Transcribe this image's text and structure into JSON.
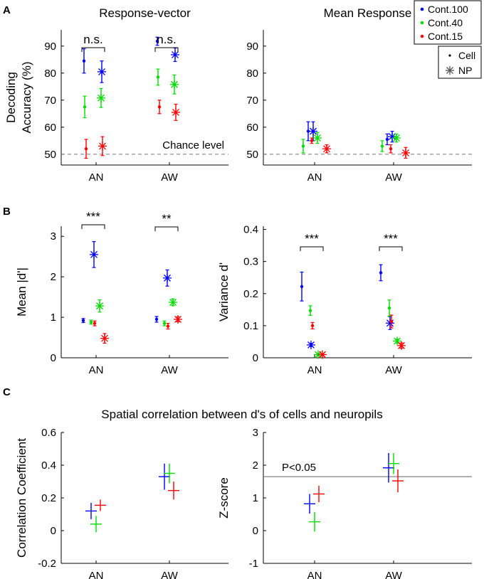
{
  "figure": {
    "panel_letters": [
      "A",
      "B",
      "C"
    ],
    "section_c_title": "Spatial correlation between d's of cells and neuropils"
  },
  "legend": {
    "colors": [
      {
        "label": "Cont.100",
        "color": "#0000ff"
      },
      {
        "label": "Cont.40",
        "color": "#00dd00"
      },
      {
        "label": "Cont.15",
        "color": "#ff0000"
      }
    ],
    "markers": [
      {
        "label": "Cell",
        "marker": "dot"
      },
      {
        "label": "NP",
        "marker": "asterisk"
      }
    ]
  },
  "chart_data": [
    {
      "type": "scatter",
      "title": "Response-vector",
      "ylabel": [
        "Decoding",
        "Accuracy (%)"
      ],
      "categories": [
        "AN",
        "AW"
      ],
      "yticks": [
        50,
        60,
        70,
        80,
        90
      ],
      "ylim": [
        46,
        96
      ],
      "reference": {
        "value": 50,
        "label": "Chance level"
      },
      "series": [
        {
          "name": "Cont.100",
          "marker": "dot",
          "color": "#0000ff",
          "values": [
            84.5,
            91.8
          ],
          "err": [
            4.5,
            1.5
          ]
        },
        {
          "name": "Cont.100",
          "marker": "asterisk",
          "color": "#0000ff",
          "values": [
            80.5,
            86.8
          ],
          "err": [
            4.0,
            2.5
          ]
        },
        {
          "name": "Cont.40",
          "marker": "dot",
          "color": "#00dd00",
          "values": [
            67.5,
            78.5
          ],
          "err": [
            4.0,
            3.0
          ]
        },
        {
          "name": "Cont.40",
          "marker": "asterisk",
          "color": "#00dd00",
          "values": [
            70.8,
            75.8
          ],
          "err": [
            3.5,
            3.5
          ]
        },
        {
          "name": "Cont.15",
          "marker": "dot",
          "color": "#ff0000",
          "values": [
            52,
            67.5
          ],
          "err": [
            3.5,
            2.5
          ]
        },
        {
          "name": "Cont.15",
          "marker": "asterisk",
          "color": "#ff0000",
          "values": [
            53,
            65.5
          ],
          "err": [
            3.5,
            3.0
          ]
        }
      ],
      "brackets": [
        {
          "category": "AN",
          "label": "n.s."
        },
        {
          "category": "AW",
          "label": "n.s."
        }
      ]
    },
    {
      "type": "scatter",
      "title": "Mean Response",
      "ylabel": [],
      "categories": [
        "AN",
        "AW"
      ],
      "yticks": [
        50,
        60,
        70,
        80,
        90
      ],
      "ylim": [
        46,
        96
      ],
      "reference": {
        "value": 50,
        "label": ""
      },
      "series": [
        {
          "name": "Cont.100",
          "marker": "dot",
          "color": "#0000ff",
          "values": [
            58.5,
            55.5
          ],
          "err": [
            3.5,
            2.0
          ]
        },
        {
          "name": "Cont.100",
          "marker": "asterisk",
          "color": "#0000ff",
          "values": [
            58.5,
            56.5
          ],
          "err": [
            3.5,
            2.0
          ]
        },
        {
          "name": "Cont.40",
          "marker": "dot",
          "color": "#00dd00",
          "values": [
            53,
            53
          ],
          "err": [
            2.5,
            2.0
          ]
        },
        {
          "name": "Cont.40",
          "marker": "asterisk",
          "color": "#00dd00",
          "values": [
            56,
            56
          ],
          "err": [
            2.0,
            1.5
          ]
        },
        {
          "name": "Cont.15",
          "marker": "dot",
          "color": "#ff0000",
          "values": [
            55,
            52
          ],
          "err": [
            1.0,
            1.5
          ]
        },
        {
          "name": "Cont.15",
          "marker": "asterisk",
          "color": "#ff0000",
          "values": [
            52,
            50.5
          ],
          "err": [
            1.5,
            2.0
          ]
        }
      ],
      "brackets": []
    },
    {
      "type": "scatter",
      "title": "",
      "ylabel": [
        "Mean |d'|"
      ],
      "categories": [
        "AN",
        "AW"
      ],
      "yticks": [
        0,
        1,
        2,
        3
      ],
      "ylim": [
        0,
        3.25
      ],
      "reference": null,
      "series": [
        {
          "name": "Cont.100",
          "marker": "dot",
          "color": "#0000ff",
          "values": [
            0.92,
            0.95
          ],
          "err": [
            0.05,
            0.07
          ]
        },
        {
          "name": "Cont.100",
          "marker": "asterisk",
          "color": "#0000ff",
          "values": [
            2.55,
            1.97
          ],
          "err": [
            0.32,
            0.2
          ]
        },
        {
          "name": "Cont.40",
          "marker": "dot",
          "color": "#00dd00",
          "values": [
            0.88,
            0.85
          ],
          "err": [
            0.05,
            0.06
          ]
        },
        {
          "name": "Cont.40",
          "marker": "asterisk",
          "color": "#00dd00",
          "values": [
            1.28,
            1.37
          ],
          "err": [
            0.15,
            0.08
          ]
        },
        {
          "name": "Cont.15",
          "marker": "dot",
          "color": "#ff0000",
          "values": [
            0.85,
            0.78
          ],
          "err": [
            0.06,
            0.07
          ]
        },
        {
          "name": "Cont.15",
          "marker": "asterisk",
          "color": "#ff0000",
          "values": [
            0.48,
            0.95
          ],
          "err": [
            0.12,
            0.06
          ]
        }
      ],
      "brackets": [
        {
          "category": "AN",
          "label": "***"
        },
        {
          "category": "AW",
          "label": "**"
        }
      ]
    },
    {
      "type": "scatter",
      "title": "",
      "ylabel": [
        "Variance d'"
      ],
      "categories": [
        "AN",
        "AW"
      ],
      "yticks": [
        0,
        0.1,
        0.2,
        0.3,
        0.4
      ],
      "ylim": [
        0,
        0.41
      ],
      "reference": null,
      "series": [
        {
          "name": "Cont.100",
          "marker": "dot",
          "color": "#0000ff",
          "values": [
            0.222,
            0.265
          ],
          "err": [
            0.045,
            0.025
          ]
        },
        {
          "name": "Cont.100",
          "marker": "asterisk",
          "color": "#0000ff",
          "values": [
            0.04,
            0.108
          ],
          "err": [
            0.005,
            0.02
          ]
        },
        {
          "name": "Cont.40",
          "marker": "dot",
          "color": "#00dd00",
          "values": [
            0.147,
            0.155
          ],
          "err": [
            0.015,
            0.025
          ]
        },
        {
          "name": "Cont.40",
          "marker": "asterisk",
          "color": "#00dd00",
          "values": [
            0.01,
            0.052
          ],
          "err": [
            0.004,
            0.006
          ]
        },
        {
          "name": "Cont.15",
          "marker": "dot",
          "color": "#ff0000",
          "values": [
            0.1,
            0.113
          ],
          "err": [
            0.01,
            0.02
          ]
        },
        {
          "name": "Cont.15",
          "marker": "asterisk",
          "color": "#ff0000",
          "values": [
            0.01,
            0.038
          ],
          "err": [
            0.003,
            0.008
          ]
        }
      ],
      "brackets": [
        {
          "category": "AN",
          "label": "***"
        },
        {
          "category": "AW",
          "label": "***"
        }
      ]
    },
    {
      "type": "scatter",
      "title": "",
      "ylabel": [
        "Correlation Coefficient"
      ],
      "categories": [
        "AN",
        "AW"
      ],
      "yticks": [
        -0.2,
        0,
        0.2,
        0.4,
        0.6
      ],
      "ylim": [
        -0.2,
        0.6
      ],
      "reference": null,
      "series": [
        {
          "name": "Cont.100",
          "marker": "cross",
          "color": "#0000ff",
          "values": [
            0.12,
            0.33
          ],
          "err": [
            0.05,
            0.08
          ]
        },
        {
          "name": "Cont.40",
          "marker": "cross",
          "color": "#00dd00",
          "values": [
            0.04,
            0.35
          ],
          "err": [
            0.05,
            0.06
          ]
        },
        {
          "name": "Cont.15",
          "marker": "cross",
          "color": "#ff0000",
          "values": [
            0.155,
            0.245
          ],
          "err": [
            0.035,
            0.055
          ]
        }
      ],
      "brackets": []
    },
    {
      "type": "scatter",
      "title": "",
      "ylabel": [
        "Z-score"
      ],
      "categories": [
        "AN",
        "AW"
      ],
      "yticks": [
        -1,
        0,
        1,
        2,
        3
      ],
      "ylim": [
        -1,
        3
      ],
      "reference": {
        "value": 1.65,
        "label": "P<0.05"
      },
      "series": [
        {
          "name": "Cont.100",
          "marker": "cross",
          "color": "#0000ff",
          "values": [
            0.82,
            1.92
          ],
          "err": [
            0.3,
            0.45
          ]
        },
        {
          "name": "Cont.40",
          "marker": "cross",
          "color": "#00dd00",
          "values": [
            0.27,
            2.05
          ],
          "err": [
            0.3,
            0.32
          ]
        },
        {
          "name": "Cont.15",
          "marker": "cross",
          "color": "#ff0000",
          "values": [
            1.12,
            1.52
          ],
          "err": [
            0.25,
            0.35
          ]
        }
      ],
      "brackets": []
    }
  ]
}
